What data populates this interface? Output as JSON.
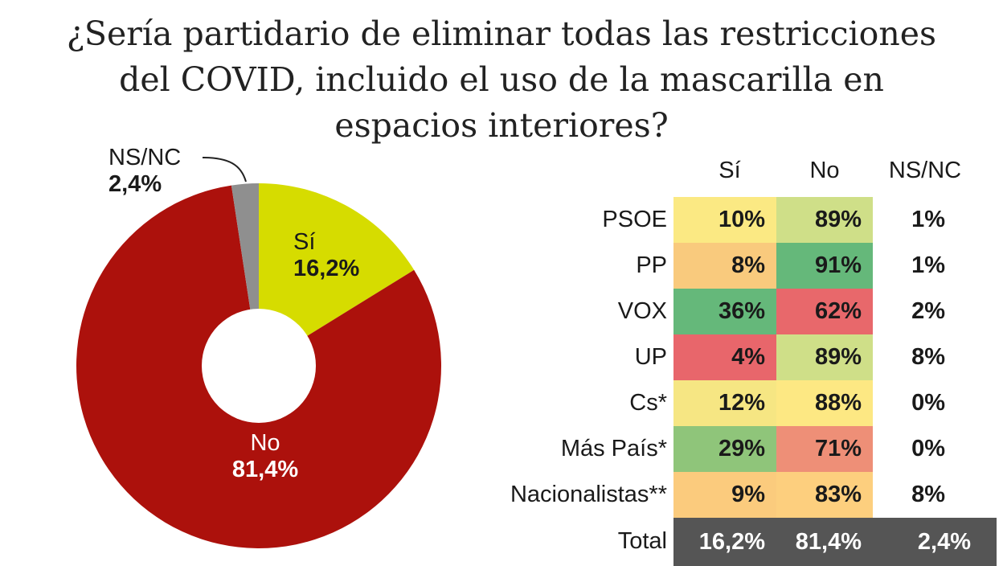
{
  "title_lines": [
    "¿Sería partidario de eliminar todas las restricciones",
    "del COVID, incluido el uso de la mascarilla en",
    "espacios interiores?"
  ],
  "chart_data": [
    {
      "type": "pie",
      "subtype": "donut",
      "slices": [
        {
          "label": "Sí",
          "value": 16.2,
          "display": "16,2%",
          "color": "#d6dc00"
        },
        {
          "label": "No",
          "value": 81.4,
          "display": "81,4%",
          "color": "#ac110c"
        },
        {
          "label": "NS/NC",
          "value": 2.4,
          "display": "2,4%",
          "color": "#8f8f8f"
        }
      ]
    },
    {
      "type": "table",
      "columns": [
        "Sí",
        "No",
        "NS/NC"
      ],
      "rows": [
        {
          "label": "PSOE",
          "si": "10%",
          "no": "89%",
          "ns": "1%",
          "si_color": "#fbe983",
          "no_color": "#cfdf88"
        },
        {
          "label": "PP",
          "si": "8%",
          "no": "91%",
          "ns": "1%",
          "si_color": "#f9ca7d",
          "no_color": "#65b87a"
        },
        {
          "label": "VOX",
          "si": "36%",
          "no": "62%",
          "ns": "2%",
          "si_color": "#65b87a",
          "no_color": "#e8686b"
        },
        {
          "label": "UP",
          "si": "4%",
          "no": "89%",
          "ns": "8%",
          "si_color": "#e8666b",
          "no_color": "#cfdf88"
        },
        {
          "label": "Cs*",
          "si": "12%",
          "no": "88%",
          "ns": "0%",
          "si_color": "#f6e683",
          "no_color": "#fde883"
        },
        {
          "label": "Más País*",
          "si": "29%",
          "no": "71%",
          "ns": "0%",
          "si_color": "#8fc57a",
          "no_color": "#ee8f77"
        },
        {
          "label": "Nacionalistas**",
          "si": "9%",
          "no": "83%",
          "ns": "8%",
          "si_color": "#fbcb7d",
          "no_color": "#fdcf7e"
        }
      ],
      "total": {
        "label": "Total",
        "si": "16,2%",
        "no": "81,4%",
        "ns": "2,4%",
        "color": "#555555"
      }
    }
  ]
}
